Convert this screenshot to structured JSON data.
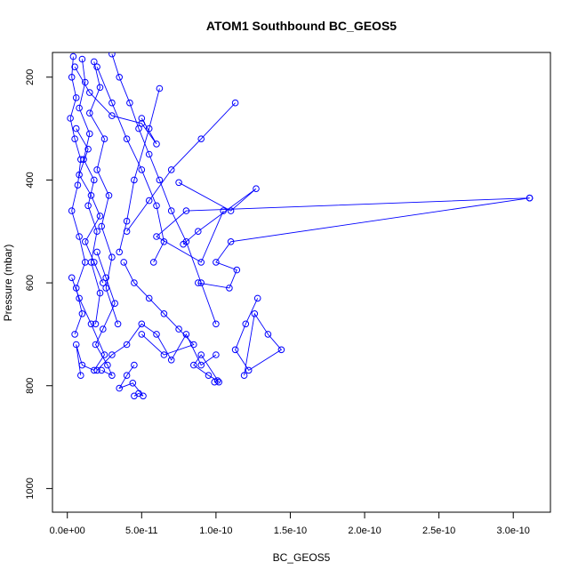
{
  "chart_data": {
    "type": "line",
    "title": "ATOM1 Southbound BC_GEOS5",
    "xlabel": "BC_GEOS5",
    "ylabel": "Pressure (mbar)",
    "xlim": [
      -1e-11,
      3.25e-10
    ],
    "ylim": [
      1046,
      152
    ],
    "y_reversed": true,
    "marker": "open-circle",
    "x_ticks": [
      {
        "value": 0,
        "label": "0.0e+00"
      },
      {
        "value": 5e-11,
        "label": "5.0e-11"
      },
      {
        "value": 1e-10,
        "label": "1.0e-10"
      },
      {
        "value": 1.5e-10,
        "label": "1.5e-10"
      },
      {
        "value": 2e-10,
        "label": "2.0e-10"
      },
      {
        "value": 2.5e-10,
        "label": "2.5e-10"
      },
      {
        "value": 3e-10,
        "label": "3.0e-10"
      }
    ],
    "y_ticks": [
      {
        "value": 200,
        "label": "200"
      },
      {
        "value": 400,
        "label": "400"
      },
      {
        "value": 600,
        "label": "600"
      },
      {
        "value": 800,
        "label": "800"
      },
      {
        "value": 1000,
        "label": "1000"
      }
    ],
    "color": "#0000ff",
    "grid": false,
    "legend": "none",
    "series": [
      {
        "x": [
          4e-12,
          3e-12,
          6e-12,
          2e-12,
          5e-12,
          9e-12,
          7e-12,
          3e-12,
          8e-12,
          1.2e-11,
          6e-12,
          1e-11,
          5e-12
        ],
        "y": [
          160,
          200,
          240,
          280,
          320,
          360,
          410,
          460,
          510,
          560,
          610,
          660,
          700
        ]
      },
      {
        "x": [
          1e-11,
          1.2e-11,
          8e-12,
          1.5e-11,
          1.1e-11,
          1.8e-11,
          1.4e-11,
          2e-11,
          1.6e-11,
          2.2e-11,
          1.9e-11
        ],
        "y": [
          165,
          210,
          260,
          310,
          360,
          400,
          450,
          500,
          560,
          620,
          680
        ]
      },
      {
        "x": [
          1.8e-11,
          2.2e-11,
          1.5e-11,
          2.5e-11,
          2e-11,
          2.8e-11,
          2.3e-11,
          3e-11,
          2.6e-11,
          3.4e-11
        ],
        "y": [
          170,
          220,
          270,
          320,
          380,
          430,
          490,
          550,
          610,
          680
        ]
      },
      {
        "x": [
          3e-11,
          3.5e-11,
          4.2e-11,
          4.8e-11,
          5.5e-11,
          6.2e-11,
          7e-11,
          8e-11,
          9e-11,
          1e-10
        ],
        "y": [
          155,
          200,
          250,
          300,
          350,
          400,
          460,
          520,
          600,
          680
        ]
      },
      {
        "x": [
          2e-11,
          3e-11,
          4e-11,
          5e-11,
          6e-11,
          6.5e-11,
          5.8e-11
        ],
        "y": [
          180,
          250,
          320,
          380,
          450,
          520,
          560
        ]
      },
      {
        "x": [
          6.2e-11,
          5.5e-11,
          4.5e-11,
          4e-11,
          3.5e-11
        ],
        "y": [
          222,
          300,
          400,
          480,
          540
        ]
      },
      {
        "x": [
          1.13e-10,
          9e-11,
          7e-11,
          5.5e-11,
          4e-11
        ],
        "y": [
          250,
          320,
          380,
          440,
          500
        ]
      },
      {
        "x": [
          5e-12,
          1.5e-11,
          3e-11,
          5e-11,
          6e-11,
          5e-11
        ],
        "y": [
          180,
          230,
          275,
          290,
          330,
          280
        ]
      },
      {
        "x": [
          7.5e-11,
          1.1e-10,
          1.27e-10,
          8.8e-11,
          7.8e-11
        ],
        "y": [
          405,
          460,
          417,
          500,
          525
        ]
      },
      {
        "x": [
          3.11e-10,
          1.1e-10,
          1e-10,
          1.14e-10,
          1.09e-10,
          8.8e-11
        ],
        "y": [
          435,
          520,
          560,
          575,
          610,
          600
        ]
      },
      {
        "x": [
          3.11e-10,
          8e-11,
          6e-11,
          9e-11,
          1.05e-10
        ],
        "y": [
          435,
          460,
          510,
          560,
          460
        ]
      },
      {
        "x": [
          1.28e-10,
          1.2e-10,
          1.13e-10,
          1.22e-10,
          1.44e-10,
          1.35e-10,
          1.26e-10,
          1.19e-10
        ],
        "y": [
          630,
          680,
          730,
          770,
          730,
          700,
          660,
          780
        ]
      },
      {
        "x": [
          1e-10,
          9e-11,
          8e-11,
          7e-11,
          6e-11,
          5e-11,
          4e-11,
          3e-11,
          2e-11
        ],
        "y": [
          740,
          760,
          700,
          750,
          700,
          680,
          720,
          740,
          770
        ]
      },
      {
        "x": [
          4.5e-11,
          4e-11,
          3.5e-11,
          4.4e-11,
          5.1e-11,
          4.8e-11,
          4.5e-11
        ],
        "y": [
          760,
          780,
          805,
          795,
          820,
          815,
          820
        ]
      },
      {
        "x": [
          9.9e-11,
          1.01e-10,
          9.5e-11,
          8.5e-11,
          9e-11,
          1.02e-10
        ],
        "y": [
          793,
          790,
          780,
          760,
          740,
          793
        ]
      },
      {
        "x": [
          3e-12,
          8e-12,
          1.6e-11,
          2.5e-11,
          1.8e-11,
          1e-11,
          6e-12,
          9e-12
        ],
        "y": [
          590,
          630,
          680,
          740,
          770,
          760,
          720,
          780
        ]
      },
      {
        "x": [
          2e-11,
          2.6e-11,
          3.2e-11,
          2.4e-11,
          1.9e-11,
          2.7e-11,
          3e-11,
          2.3e-11
        ],
        "y": [
          540,
          590,
          640,
          690,
          720,
          760,
          780,
          770
        ]
      },
      {
        "x": [
          3.8e-11,
          4.5e-11,
          5.5e-11,
          6.5e-11,
          7.5e-11,
          8.5e-11,
          6.5e-11,
          5e-11
        ],
        "y": [
          560,
          600,
          630,
          660,
          690,
          720,
          740,
          700
        ]
      },
      {
        "x": [
          6e-12,
          1.4e-11,
          8e-12,
          1.6e-11,
          2.2e-11,
          1.2e-11,
          1.8e-11,
          2.4e-11
        ],
        "y": [
          300,
          340,
          390,
          430,
          470,
          520,
          560,
          600
        ]
      }
    ]
  }
}
